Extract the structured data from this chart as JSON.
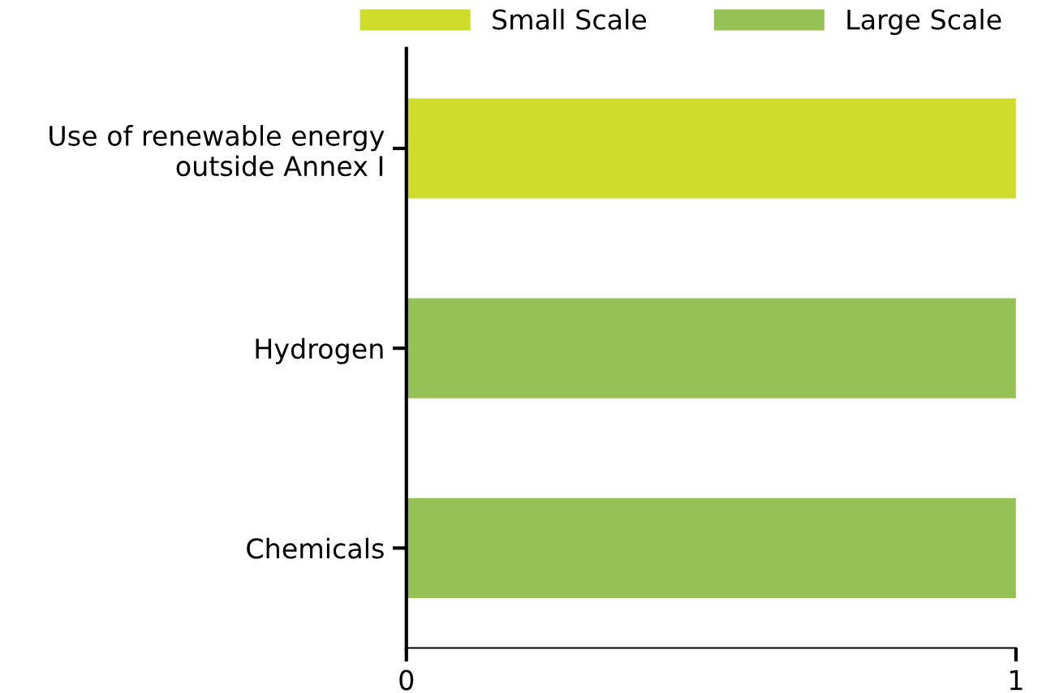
{
  "chart_data": {
    "type": "bar",
    "orientation": "horizontal",
    "categories": [
      "Use of renewable energy\noutside Annex I",
      "Hydrogen",
      "Chemicals"
    ],
    "series": [
      {
        "name": "Small Scale",
        "color": "#d0dc2c",
        "values": [
          1,
          null,
          null
        ]
      },
      {
        "name": "Large Scale",
        "color": "#96c156",
        "values": [
          null,
          1,
          1
        ]
      }
    ],
    "xlim": [
      0,
      1
    ],
    "xticks": [
      0,
      1
    ],
    "legend": "top",
    "grid": false
  }
}
